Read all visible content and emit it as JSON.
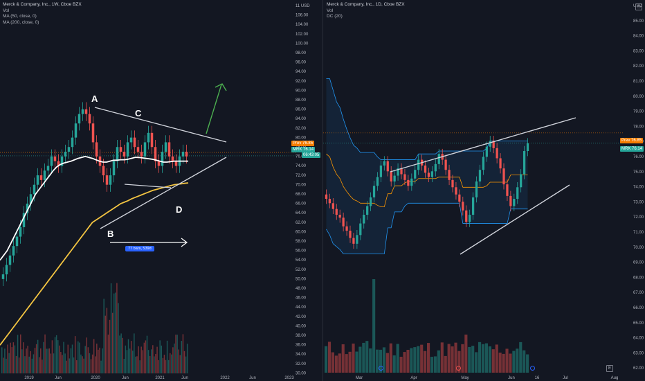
{
  "left": {
    "legend": {
      "title": "Merck & Company, Inc., 1W, Cboe BZX",
      "lines": [
        "Vol",
        "MA (50, close, 0)",
        "MA (200, close, 0)"
      ]
    },
    "y_ticks": [
      "11 USD",
      "106.00",
      "104.00",
      "102.00",
      "100.00",
      "98.00",
      "96.00",
      "94.00",
      "92.00",
      "90.00",
      "88.00",
      "86.00",
      "84.00",
      "82.00",
      "80.00",
      "78.00",
      "76.00",
      "74.00",
      "72.00",
      "70.00",
      "68.00",
      "66.00",
      "64.00",
      "62.00",
      "60.00",
      "58.00",
      "56.00",
      "54.00",
      "52.00",
      "50.00",
      "48.00",
      "46.00",
      "44.00",
      "42.00",
      "40.00",
      "38.00",
      "36.00",
      "34.00",
      "32.00",
      "30.00"
    ],
    "x_ticks": [
      "2019",
      "Jun",
      "2020",
      "Jun",
      "2021",
      "Jun",
      "2022",
      "Jun",
      "2023"
    ],
    "price_tags": {
      "prev": "Prev",
      "prev_val": "76.85",
      "symbol": "MRK",
      "last": "76.14",
      "countdown": "06:43:05"
    },
    "annotations": [
      "A",
      "B",
      "C",
      "D"
    ],
    "range_badge": "77 bars, 539d"
  },
  "right": {
    "legend": {
      "title": "Merck & Company, Inc., 1D, Cboe BZX",
      "lines": [
        "Vol",
        "DC (20)"
      ]
    },
    "y_ticks": [
      "USD",
      "85.00",
      "84.00",
      "83.00",
      "82.00",
      "81.00",
      "80.00",
      "79.00",
      "78.00",
      "77.00",
      "76.00",
      "75.00",
      "74.00",
      "73.00",
      "72.00",
      "71.00",
      "70.00",
      "69.00",
      "68.00",
      "67.00",
      "66.00",
      "65.00",
      "64.00",
      "63.00",
      "62.00",
      "61.00"
    ],
    "x_ticks": [
      "Mar",
      "Apr",
      "May",
      "Jun",
      "16",
      "Jul",
      "Aug"
    ],
    "price_tags": {
      "prev": "Prev",
      "prev_val": "76.85",
      "symbol": "MRK",
      "last": "76.14"
    },
    "buttons": [
      "E"
    ]
  },
  "colors": {
    "bg": "#131722",
    "up": "#26a69a",
    "down": "#ef5350",
    "ma50": "#ffffff",
    "ma200": "#f4c542",
    "dc": "#2196f3",
    "dc_mid": "#ff9800",
    "arrow": "#4caf50",
    "badge": "#2962ff"
  },
  "chart_data": [
    {
      "type": "candlestick",
      "title": "Merck & Company, Inc., 1W, Cboe BZX",
      "ylim": [
        30,
        108
      ],
      "approx_series": {
        "close": [
          51,
          53,
          55,
          57,
          59,
          61,
          64,
          66,
          68,
          70,
          72,
          71,
          73,
          74,
          76,
          75,
          74,
          76,
          77,
          78,
          80,
          83,
          85,
          86,
          85,
          83,
          79,
          76,
          74,
          72,
          70,
          72,
          75,
          78,
          77,
          76,
          79,
          80,
          78,
          77,
          76,
          79,
          81,
          78,
          75,
          74,
          77,
          79,
          76,
          75,
          74,
          76,
          77,
          76
        ],
        "ma50": [
          54,
          55,
          56,
          57.5,
          59,
          60.5,
          62,
          63.5,
          65,
          66.5,
          68,
          69,
          70,
          71,
          72,
          73,
          73.8,
          74.3,
          74.6,
          74.8,
          75,
          75.3,
          75.6,
          75.8,
          76,
          75.8,
          75.6,
          75.3,
          75,
          74.8,
          74.8,
          75,
          75.2,
          75.2,
          75.3,
          75.3,
          75.4,
          75.6,
          75.8,
          75.8,
          75.7,
          75.6,
          75.5,
          75.4,
          75.2,
          75,
          74.8,
          74.8,
          74.9,
          75,
          75,
          75,
          75,
          75
        ],
        "ma200": [
          36,
          37,
          38,
          39,
          40,
          41,
          42,
          43,
          44,
          45,
          46,
          47,
          48,
          49,
          50,
          51,
          52,
          53,
          54,
          55,
          56,
          57,
          58,
          59,
          60,
          61,
          62,
          62.5,
          63,
          63.5,
          64,
          64.5,
          65,
          65.5,
          66,
          66.3,
          66.6,
          67,
          67.3,
          67.6,
          67.9,
          68.2,
          68.5,
          68.8,
          69,
          69.2,
          69.4,
          69.6,
          69.8,
          70,
          70.1,
          70.2,
          70.3,
          70.4
        ]
      }
    },
    {
      "type": "candlestick",
      "title": "Merck & Company, Inc., 1D, Cboe BZX",
      "ylim": [
        60.5,
        85.5
      ],
      "indicator": "DC (20)",
      "approx_series": {
        "close": [
          72.3,
          72.0,
          71.6,
          71.2,
          71.0,
          70.4,
          70.1,
          69.6,
          69.2,
          69.8,
          70.6,
          71.2,
          71.8,
          72.4,
          73.2,
          73.8,
          74.6,
          74.9,
          74.2,
          73.5,
          73.9,
          74.4,
          74.0,
          73.6,
          73.2,
          73.7,
          74.3,
          75.0,
          74.6,
          74.1,
          73.8,
          74.2,
          74.7,
          75.4,
          75.0,
          74.3,
          73.6,
          73.1,
          72.6,
          72.1,
          71.5,
          70.7,
          71.2,
          72.4,
          73.5,
          74.3,
          75.2,
          75.9,
          76.3,
          75.8,
          75.1,
          74.4,
          73.3,
          72.5,
          71.8,
          72.3,
          73.1,
          74.0,
          75.6,
          76.14
        ],
        "dc_upper": [
          80.6,
          80.6,
          79.8,
          79.0,
          78.6,
          77.8,
          77.1,
          76.5,
          76.0,
          75.8,
          75.5,
          75.5,
          75.5,
          75.5,
          75.5,
          75.2,
          75.0,
          75.0,
          75.0,
          75.0,
          75.0,
          75.0,
          75.0,
          75.0,
          75.0,
          75.0,
          75.0,
          75.4,
          75.4,
          75.4,
          75.4,
          75.4,
          75.4,
          75.6,
          75.6,
          75.6,
          75.6,
          75.6,
          75.6,
          75.6,
          75.6,
          75.6,
          75.6,
          75.6,
          75.6,
          75.6,
          75.6,
          75.8,
          76.3,
          76.3,
          76.3,
          76.3,
          76.3,
          76.3,
          76.3,
          76.3,
          76.3,
          76.3,
          76.3,
          76.3
        ],
        "dc_lower": [
          70.2,
          69.8,
          69.2,
          69.0,
          68.8,
          68.5,
          68.5,
          68.5,
          68.5,
          68.5,
          68.5,
          68.5,
          68.5,
          68.5,
          68.5,
          68.5,
          68.5,
          68.5,
          70.3,
          70.3,
          71.4,
          71.4,
          71.4,
          71.8,
          72.0,
          72.0,
          72.0,
          72.0,
          72.0,
          72.0,
          72.0,
          72.0,
          72.0,
          72.0,
          72.0,
          72.0,
          72.0,
          72.0,
          72.0,
          72.0,
          70.6,
          70.6,
          70.6,
          70.6,
          70.6,
          70.6,
          70.6,
          70.6,
          70.6,
          70.6,
          70.6,
          70.6,
          70.6,
          70.6,
          71.6,
          71.6,
          71.6,
          71.6,
          71.6,
          71.6
        ]
      }
    }
  ]
}
